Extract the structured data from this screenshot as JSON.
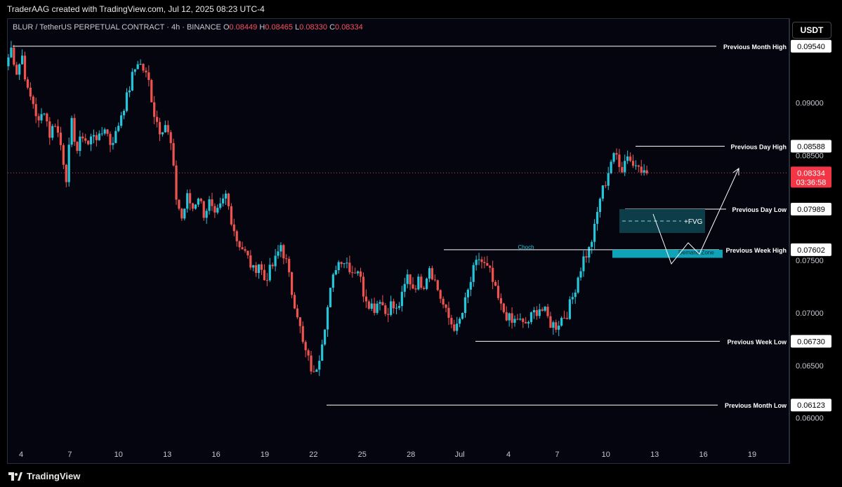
{
  "header": {
    "attribution": "TraderAAG created with TradingView.com, Jul 12, 2025 08:23 UTC-4"
  },
  "legend": {
    "symbol": "BLUR / TetherUS PERPETUAL CONTRACT · 4h · BINANCE",
    "o_label": "O",
    "o_value": "0.08449",
    "h_label": "H",
    "h_value": "0.08465",
    "l_label": "L",
    "l_value": "0.08330",
    "c_label": "C",
    "c_value": "0.08334"
  },
  "toolbar": {
    "currency_label": "USDT"
  },
  "footer": {
    "brand": "TradingView"
  },
  "colors": {
    "up": "#26c6da",
    "down": "#ef5350",
    "level_line": "#ffffff",
    "fvg_fill": "#0e3d4a",
    "demand_fill": "#0fa3b8",
    "last_price_bg": "#f23645"
  },
  "chart_data": {
    "type": "candlestick",
    "timeframe": "4h",
    "y_range": [
      0.0575,
      0.098
    ],
    "y_ticks": [
      "0.09000",
      "0.08500",
      "0.07500",
      "0.07000",
      "0.06500",
      "0.06000"
    ],
    "x_ticks": [
      "4",
      "7",
      "10",
      "13",
      "16",
      "19",
      "22",
      "25",
      "28",
      "Jul",
      "4",
      "7",
      "10",
      "13",
      "16",
      "19"
    ],
    "last_price": "0.08334",
    "countdown": "03:36:58",
    "ohlc_path": [
      0.0935,
      0.0952,
      0.093,
      0.0945,
      0.091,
      0.09,
      0.088,
      0.0895,
      0.087,
      0.0882,
      0.086,
      0.083,
      0.088,
      0.0855,
      0.087,
      0.086,
      0.0872,
      0.0865,
      0.0878,
      0.0862,
      0.087,
      0.089,
      0.0905,
      0.0925,
      0.094,
      0.0932,
      0.092,
      0.089,
      0.0875,
      0.088,
      0.086,
      0.081,
      0.079,
      0.081,
      0.08,
      0.0812,
      0.0795,
      0.0805,
      0.079,
      0.08,
      0.0812,
      0.079,
      0.077,
      0.0762,
      0.0752,
      0.074,
      0.0748,
      0.0732,
      0.074,
      0.075,
      0.0765,
      0.0748,
      0.072,
      0.07,
      0.067,
      0.0655,
      0.064,
      0.066,
      0.069,
      0.072,
      0.0745,
      0.0752,
      0.0748,
      0.074,
      0.0742,
      0.072,
      0.071,
      0.0705,
      0.0715,
      0.07,
      0.0708,
      0.0702,
      0.0715,
      0.0735,
      0.0725,
      0.073,
      0.0728,
      0.0745,
      0.073,
      0.0715,
      0.07,
      0.069,
      0.0685,
      0.07,
      0.072,
      0.074,
      0.0752,
      0.0745,
      0.0738,
      0.072,
      0.0705,
      0.0698,
      0.069,
      0.0695,
      0.0688,
      0.0692,
      0.07,
      0.0705,
      0.07,
      0.069,
      0.0688,
      0.0695,
      0.07,
      0.0715,
      0.0735,
      0.0752,
      0.076,
      0.078,
      0.081,
      0.0825,
      0.0845,
      0.085,
      0.0838,
      0.0852,
      0.084,
      0.0845,
      0.0833
    ],
    "levels": [
      {
        "name": "Previous Month High",
        "price": "0.09540"
      },
      {
        "name": "Previous Day High",
        "price": "0.08588"
      },
      {
        "name": "Previous Day Low",
        "price": "0.07989"
      },
      {
        "name": "Previous Week High",
        "price": "0.07602"
      },
      {
        "name": "Previous Week Low",
        "price": "0.06730"
      },
      {
        "name": "Previous Month Low",
        "price": "0.06123"
      }
    ],
    "annotations": {
      "fvg_label": "+FVG",
      "demand_label": "Demand Zone",
      "choch_label": "Choch"
    }
  }
}
